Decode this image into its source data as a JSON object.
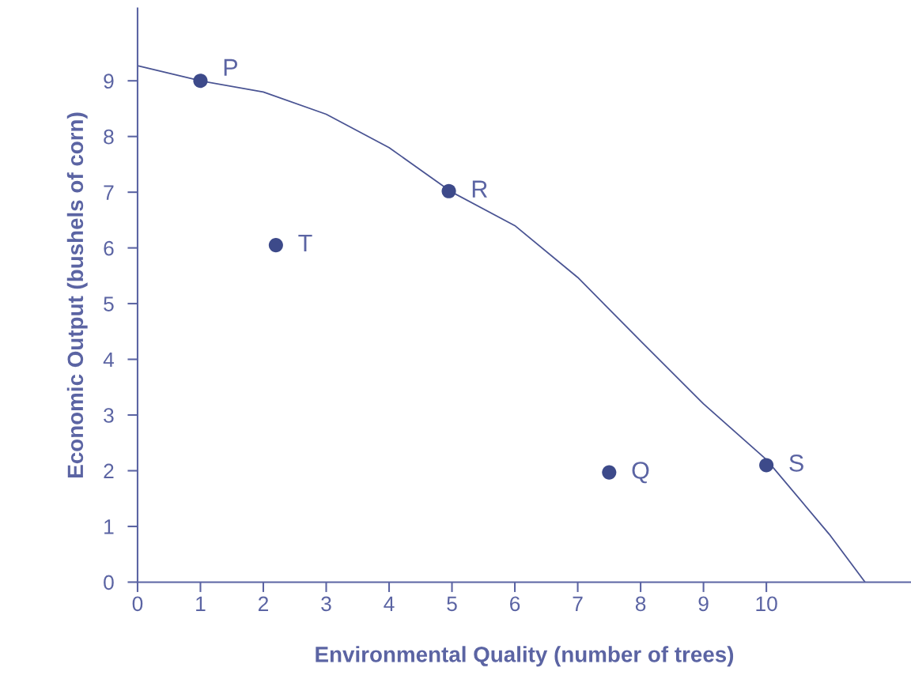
{
  "chart_data": {
    "type": "scatter",
    "xlabel": "Environmental Quality (number of trees)",
    "ylabel": "Economic Output (bushels of corn)",
    "xlim": [
      0,
      12.3
    ],
    "ylim": [
      0,
      10.3
    ],
    "xticks": [
      0,
      1,
      2,
      3,
      4,
      5,
      6,
      7,
      8,
      9,
      10
    ],
    "yticks": [
      0,
      1,
      2,
      3,
      4,
      5,
      6,
      7,
      8,
      9
    ],
    "grid": false,
    "legend": false,
    "series": [
      {
        "type": "line",
        "color": "#4a5493",
        "line_style": "solid",
        "marker": "none",
        "x": [
          0,
          1,
          2,
          3,
          4,
          5,
          6,
          7,
          8,
          9,
          10,
          11,
          11.57
        ],
        "values": [
          9.27,
          9.0,
          8.8,
          8.4,
          7.8,
          7.0,
          6.4,
          5.47,
          4.33,
          3.2,
          2.2,
          0.86,
          0
        ]
      },
      {
        "color": "#3d4a8a",
        "marker": "circle",
        "x": [
          1,
          4.95,
          2.2,
          7.5,
          10
        ],
        "values": [
          9.0,
          7.02,
          6.05,
          1.97,
          2.1
        ]
      }
    ],
    "annotations": [
      {
        "text": "P",
        "x": 1,
        "y": 9.0
      },
      {
        "text": "R",
        "x": 4.95,
        "y": 7.02
      },
      {
        "text": "T",
        "x": 2.2,
        "y": 6.05
      },
      {
        "text": "Q",
        "x": 7.5,
        "y": 1.97
      },
      {
        "text": "S",
        "x": 10,
        "y": 2.1
      }
    ]
  }
}
